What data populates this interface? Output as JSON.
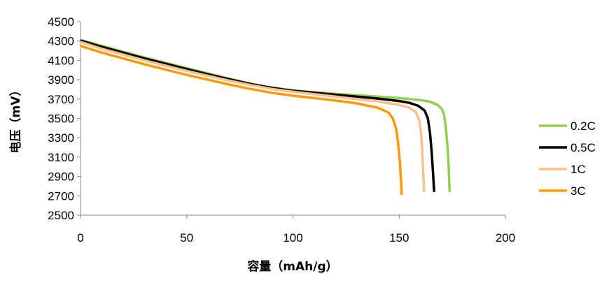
{
  "chart_data": {
    "type": "line",
    "title": "",
    "xlabel": "容量（mAh/g）",
    "ylabel": "电压（mV）",
    "xlim": [
      0,
      200
    ],
    "ylim": [
      2500,
      4500
    ],
    "x_ticks": [
      "0",
      "50",
      "100",
      "150",
      "200"
    ],
    "y_ticks": [
      "2500",
      "2700",
      "2900",
      "3100",
      "3300",
      "3500",
      "3700",
      "3900",
      "4100",
      "4300",
      "4500"
    ],
    "grid": false,
    "legend_position": "right",
    "series": [
      {
        "name": "0.2C",
        "color": "#92d050",
        "points": [
          [
            0,
            4310
          ],
          [
            10,
            4250
          ],
          [
            20,
            4190
          ],
          [
            30,
            4130
          ],
          [
            40,
            4075
          ],
          [
            50,
            4020
          ],
          [
            60,
            3965
          ],
          [
            70,
            3910
          ],
          [
            80,
            3860
          ],
          [
            90,
            3820
          ],
          [
            100,
            3790
          ],
          [
            110,
            3770
          ],
          [
            120,
            3755
          ],
          [
            130,
            3740
          ],
          [
            140,
            3725
          ],
          [
            150,
            3710
          ],
          [
            160,
            3690
          ],
          [
            165,
            3670
          ],
          [
            168,
            3640
          ],
          [
            170,
            3600
          ],
          [
            171,
            3550
          ],
          [
            172,
            3400
          ],
          [
            172.8,
            3200
          ],
          [
            173.3,
            3000
          ],
          [
            173.6,
            2800
          ],
          [
            173.8,
            2740
          ]
        ]
      },
      {
        "name": "0.5C",
        "color": "#000000",
        "points": [
          [
            0,
            4305
          ],
          [
            10,
            4240
          ],
          [
            20,
            4180
          ],
          [
            30,
            4120
          ],
          [
            40,
            4065
          ],
          [
            50,
            4010
          ],
          [
            60,
            3955
          ],
          [
            70,
            3905
          ],
          [
            80,
            3855
          ],
          [
            90,
            3815
          ],
          [
            100,
            3785
          ],
          [
            110,
            3765
          ],
          [
            120,
            3745
          ],
          [
            130,
            3725
          ],
          [
            140,
            3705
          ],
          [
            150,
            3680
          ],
          [
            155,
            3660
          ],
          [
            159,
            3630
          ],
          [
            162,
            3580
          ],
          [
            163.5,
            3500
          ],
          [
            164.5,
            3350
          ],
          [
            165.3,
            3150
          ],
          [
            165.9,
            2950
          ],
          [
            166.3,
            2800
          ],
          [
            166.5,
            2740
          ]
        ]
      },
      {
        "name": "1C",
        "color": "#fac090",
        "points": [
          [
            0,
            4290
          ],
          [
            10,
            4220
          ],
          [
            20,
            4160
          ],
          [
            30,
            4100
          ],
          [
            40,
            4045
          ],
          [
            50,
            3990
          ],
          [
            60,
            3940
          ],
          [
            70,
            3890
          ],
          [
            80,
            3845
          ],
          [
            90,
            3805
          ],
          [
            100,
            3775
          ],
          [
            110,
            3750
          ],
          [
            120,
            3725
          ],
          [
            130,
            3700
          ],
          [
            140,
            3675
          ],
          [
            150,
            3640
          ],
          [
            155,
            3610
          ],
          [
            158,
            3560
          ],
          [
            159.5,
            3480
          ],
          [
            160.3,
            3350
          ],
          [
            160.9,
            3150
          ],
          [
            161.3,
            2950
          ],
          [
            161.6,
            2800
          ],
          [
            161.7,
            2740
          ]
        ]
      },
      {
        "name": "3C",
        "color": "#ff9900",
        "points": [
          [
            0,
            4250
          ],
          [
            10,
            4180
          ],
          [
            20,
            4120
          ],
          [
            30,
            4060
          ],
          [
            40,
            4005
          ],
          [
            50,
            3950
          ],
          [
            60,
            3900
          ],
          [
            70,
            3850
          ],
          [
            80,
            3805
          ],
          [
            90,
            3765
          ],
          [
            100,
            3735
          ],
          [
            110,
            3710
          ],
          [
            120,
            3685
          ],
          [
            130,
            3655
          ],
          [
            140,
            3610
          ],
          [
            145,
            3560
          ],
          [
            147,
            3500
          ],
          [
            148.5,
            3400
          ],
          [
            149.5,
            3250
          ],
          [
            150.3,
            3050
          ],
          [
            150.8,
            2880
          ],
          [
            151.1,
            2760
          ],
          [
            151.2,
            2710
          ]
        ]
      }
    ]
  }
}
